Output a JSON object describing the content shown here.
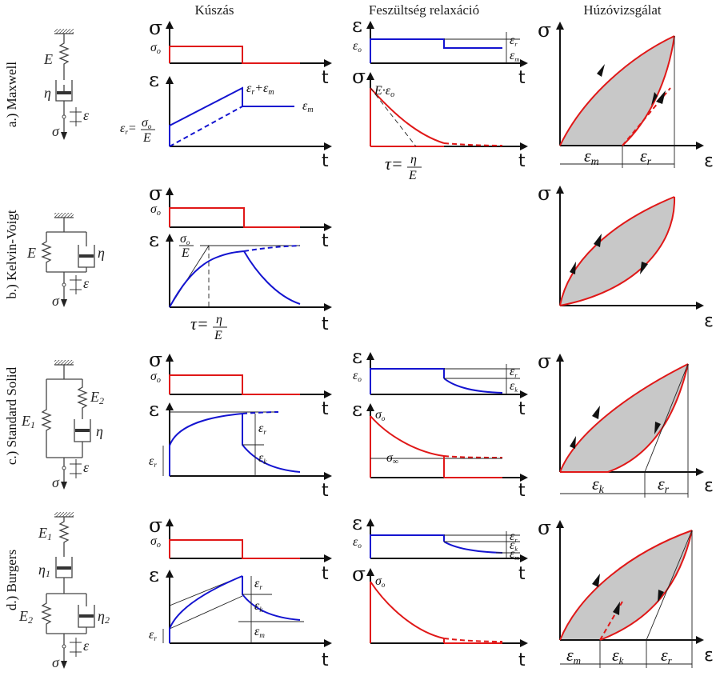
{
  "columns": {
    "creep": "Kúszás",
    "relaxation": "Feszültség relaxáció",
    "tensile": "Húzóvizsgálat"
  },
  "rows": {
    "maxwell": "a.) Maxwell",
    "kelvin": "b.) Kelvin-Voigt",
    "standard": "c.) Standard Solid",
    "burgers": "d.) Burgers"
  },
  "symbols": {
    "sigma": "σ",
    "epsilon": "ε",
    "t": "t",
    "sigma_o": "σ",
    "sigma_o_sub": "o",
    "eps_o": "ε",
    "eps_o_sub": "o",
    "E": "E",
    "E1": "E",
    "E1_sub": "1",
    "E2": "E",
    "E2_sub": "2",
    "eta": "η",
    "eta1_sub": "1",
    "eta2_sub": "2",
    "eps_r": "ε",
    "eps_r_sub": "r",
    "eps_m": "ε",
    "eps_m_sub": "m",
    "eps_k": "ε",
    "eps_k_sub": "k",
    "eps_r_plus_eps_m": "ε",
    "E_eps_o": "E·ε",
    "tau": "τ=",
    "sigma_inf": "σ",
    "sigma_inf_sub": "∞",
    "eq_r": "ε",
    "equals": "=",
    "plus": "+"
  }
}
